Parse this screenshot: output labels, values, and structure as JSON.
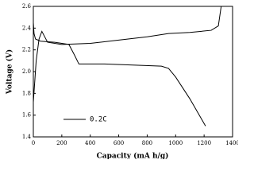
{
  "chart_data": {
    "type": "line",
    "x_label": "Capacity (mA h/g)",
    "y_label": "Voltage (V)",
    "xlim": [
      0,
      1400
    ],
    "xticks": [
      0,
      200,
      400,
      600,
      800,
      1000,
      1200,
      1400
    ],
    "ylim": [
      1.4,
      2.6
    ],
    "yticks": [
      1.4,
      1.6,
      1.8,
      {
        "value": 2.0,
        "label": "2.0"
      },
      2.2,
      2.4,
      2.6
    ],
    "legend": "lower left",
    "series": [
      {
        "name": "0.2C",
        "color": "#000000",
        "x": [
          0,
          5,
          15,
          50,
          150,
          250,
          290,
          320,
          500,
          700,
          900,
          950,
          1000,
          1100,
          1210
        ],
        "values": [
          2.45,
          2.35,
          2.3,
          2.28,
          2.27,
          2.25,
          2.15,
          2.07,
          2.07,
          2.06,
          2.05,
          2.03,
          1.95,
          1.75,
          1.5
        ]
      },
      {
        "color": "#000000",
        "x": [
          0,
          20,
          40,
          60,
          100,
          200,
          400,
          600,
          800,
          950,
          1100,
          1250,
          1300,
          1320
        ],
        "values": [
          1.72,
          2.1,
          2.3,
          2.37,
          2.27,
          2.25,
          2.26,
          2.29,
          2.32,
          2.35,
          2.36,
          2.38,
          2.42,
          2.6
        ]
      }
    ]
  }
}
